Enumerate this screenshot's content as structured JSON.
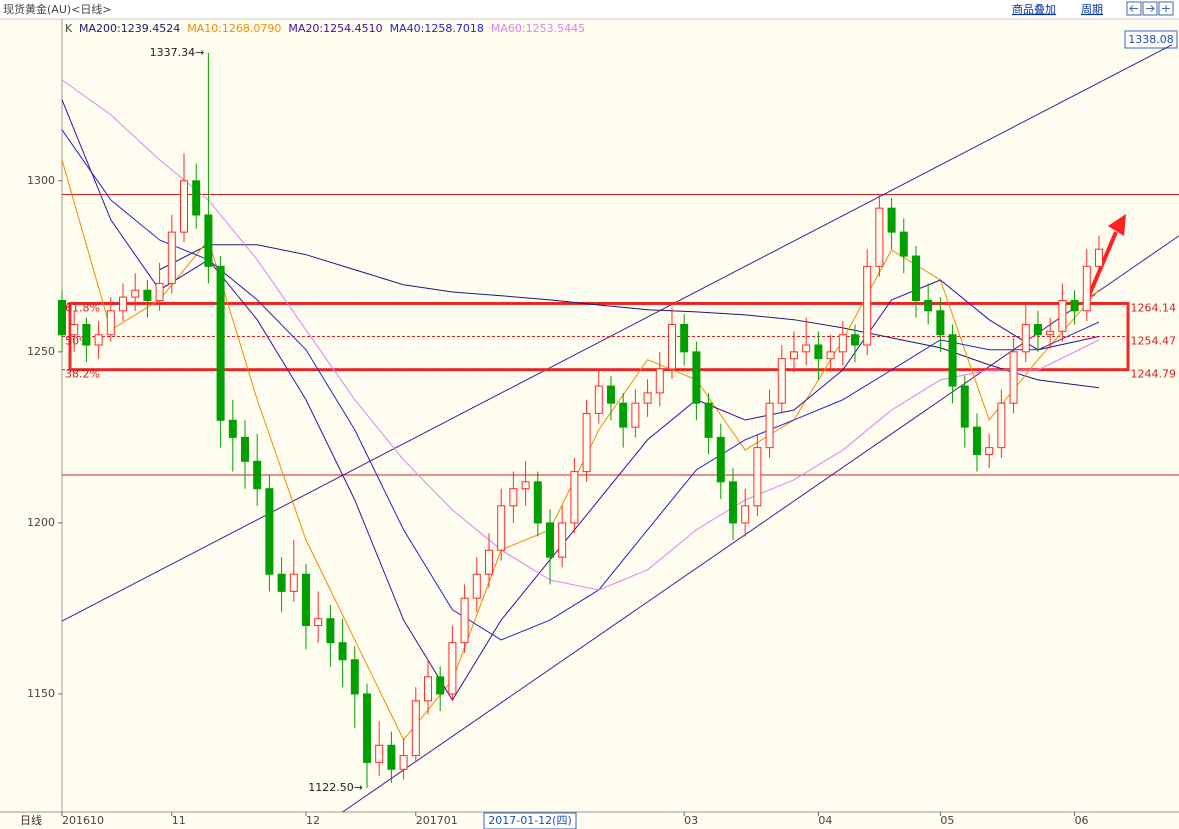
{
  "chart_data": {
    "type": "candlestick",
    "title": "现货黄金(AU)<日线>",
    "indicator_label": "K",
    "period_label": "日线",
    "toolbar": [
      "商品叠加",
      "周期"
    ],
    "cursor_label": "2017-01-12(四)",
    "price_tag": 1338.08,
    "categories": [
      "201610",
      null,
      null,
      null,
      null,
      null,
      null,
      null,
      null,
      "11",
      null,
      null,
      null,
      null,
      null,
      null,
      null,
      null,
      null,
      null,
      "12",
      null,
      null,
      null,
      null,
      null,
      null,
      null,
      null,
      "201701",
      null,
      null,
      null,
      null,
      null,
      null,
      null,
      null,
      null,
      null,
      null,
      null,
      null,
      null,
      null,
      null,
      null,
      null,
      null,
      null,
      null,
      "03",
      null,
      null,
      null,
      null,
      null,
      null,
      null,
      null,
      null,
      null,
      "04",
      null,
      null,
      null,
      null,
      null,
      null,
      null,
      null,
      null,
      "05",
      null,
      null,
      null,
      null,
      null,
      null,
      null,
      null,
      null,
      null,
      "06",
      null,
      null
    ],
    "ohlc": [
      [
        1265,
        1268,
        1250,
        1255
      ],
      [
        1255,
        1262,
        1250,
        1258
      ],
      [
        1258,
        1260,
        1247,
        1252
      ],
      [
        1252,
        1259,
        1248,
        1255
      ],
      [
        1255,
        1266,
        1253,
        1262
      ],
      [
        1262,
        1270,
        1259,
        1266
      ],
      [
        1266,
        1273,
        1262,
        1268
      ],
      [
        1268,
        1271,
        1260,
        1265
      ],
      [
        1265,
        1276,
        1262,
        1270
      ],
      [
        1270,
        1290,
        1267,
        1285
      ],
      [
        1285,
        1308,
        1282,
        1300
      ],
      [
        1300,
        1305,
        1286,
        1290
      ],
      [
        1290,
        1337.34,
        1270,
        1275
      ],
      [
        1275,
        1278,
        1222,
        1230
      ],
      [
        1230,
        1236,
        1215,
        1225
      ],
      [
        1225,
        1230,
        1210,
        1218
      ],
      [
        1218,
        1226,
        1205,
        1210
      ],
      [
        1210,
        1214,
        1180,
        1185
      ],
      [
        1185,
        1190,
        1174,
        1180
      ],
      [
        1180,
        1195,
        1177,
        1185
      ],
      [
        1185,
        1188,
        1163,
        1170
      ],
      [
        1170,
        1180,
        1165,
        1172
      ],
      [
        1172,
        1176,
        1158,
        1165
      ],
      [
        1165,
        1172,
        1152,
        1160
      ],
      [
        1160,
        1164,
        1140,
        1150
      ],
      [
        1150,
        1153,
        1122.5,
        1130
      ],
      [
        1130,
        1142,
        1126,
        1135
      ],
      [
        1135,
        1139,
        1124,
        1128
      ],
      [
        1128,
        1137,
        1125,
        1132
      ],
      [
        1132,
        1152,
        1130,
        1148
      ],
      [
        1148,
        1160,
        1144,
        1155
      ],
      [
        1155,
        1158,
        1145,
        1150
      ],
      [
        1150,
        1170,
        1148,
        1165
      ],
      [
        1165,
        1182,
        1162,
        1178
      ],
      [
        1178,
        1190,
        1174,
        1185
      ],
      [
        1185,
        1197,
        1181,
        1192
      ],
      [
        1192,
        1210,
        1189,
        1205
      ],
      [
        1205,
        1215,
        1200,
        1210
      ],
      [
        1210,
        1218,
        1205,
        1212
      ],
      [
        1212,
        1215,
        1196,
        1200
      ],
      [
        1200,
        1204,
        1182,
        1190
      ],
      [
        1190,
        1205,
        1187,
        1200
      ],
      [
        1200,
        1219,
        1197,
        1215
      ],
      [
        1215,
        1236,
        1212,
        1232
      ],
      [
        1232,
        1245,
        1229,
        1240
      ],
      [
        1240,
        1243,
        1230,
        1235
      ],
      [
        1235,
        1238,
        1222,
        1228
      ],
      [
        1228,
        1239,
        1225,
        1235
      ],
      [
        1235,
        1242,
        1231,
        1238
      ],
      [
        1238,
        1250,
        1234,
        1245
      ],
      [
        1245,
        1263,
        1242,
        1258
      ],
      [
        1258,
        1261,
        1246,
        1250
      ],
      [
        1250,
        1253,
        1230,
        1235
      ],
      [
        1235,
        1238,
        1220,
        1225
      ],
      [
        1225,
        1229,
        1207,
        1212
      ],
      [
        1212,
        1216,
        1195,
        1200
      ],
      [
        1200,
        1210,
        1196,
        1205
      ],
      [
        1205,
        1226,
        1202,
        1222
      ],
      [
        1222,
        1239,
        1219,
        1235
      ],
      [
        1235,
        1252,
        1232,
        1248
      ],
      [
        1248,
        1256,
        1244,
        1250
      ],
      [
        1250,
        1260,
        1246,
        1252
      ],
      [
        1252,
        1256,
        1242,
        1248
      ],
      [
        1248,
        1255,
        1244,
        1250
      ],
      [
        1250,
        1259,
        1246,
        1255
      ],
      [
        1255,
        1258,
        1247,
        1252
      ],
      [
        1252,
        1280,
        1249,
        1275
      ],
      [
        1275,
        1296,
        1272,
        1292
      ],
      [
        1292,
        1295,
        1280,
        1285
      ],
      [
        1285,
        1289,
        1273,
        1278
      ],
      [
        1278,
        1281,
        1260,
        1265
      ],
      [
        1265,
        1270,
        1258,
        1262
      ],
      [
        1262,
        1266,
        1250,
        1255
      ],
      [
        1255,
        1258,
        1235,
        1240
      ],
      [
        1240,
        1243,
        1222,
        1228
      ],
      [
        1228,
        1232,
        1215,
        1220
      ],
      [
        1220,
        1226,
        1216,
        1222
      ],
      [
        1222,
        1239,
        1219,
        1235
      ],
      [
        1235,
        1254,
        1232,
        1250
      ],
      [
        1250,
        1264,
        1247,
        1258
      ],
      [
        1258,
        1262,
        1250,
        1255
      ],
      [
        1255,
        1260,
        1251,
        1256
      ],
      [
        1256,
        1270,
        1253,
        1265
      ],
      [
        1265,
        1268,
        1258,
        1262
      ],
      [
        1262,
        1280,
        1259,
        1275
      ],
      [
        1275,
        1284,
        1272,
        1280
      ]
    ],
    "up_color": "#ff2a2a",
    "down_color": "#00a000",
    "xlim": [
      0,
      91.56
    ],
    "ylim": [
      1115.5,
      1347
    ],
    "yticks": [
      1150,
      1200,
      1250,
      1300
    ],
    "series": [
      {
        "name": "MA200:1239.4524",
        "color": "#1a1a6e",
        "x": [
          8,
          12,
          16,
          20,
          24,
          28,
          32,
          36,
          40,
          44,
          48,
          52,
          56,
          60,
          64,
          68,
          72,
          76,
          80,
          85
        ],
        "values": [
          1274,
          1281.3,
          1281.3,
          1278.4,
          1274,
          1269.6,
          1267.5,
          1266.4,
          1265.2,
          1263.7,
          1262.3,
          1261.7,
          1260.8,
          1259.4,
          1257,
          1254.1,
          1251.2,
          1246.2,
          1241.8,
          1239.5
        ]
      },
      {
        "name": "MA10:1268.0790",
        "color": "#f08c00",
        "x": [
          0,
          4,
          8,
          12,
          16,
          20,
          24,
          28,
          32,
          36,
          40,
          44,
          48,
          52,
          56,
          60,
          64,
          68,
          72,
          76,
          80,
          85
        ],
        "values": [
          1306.1,
          1256.4,
          1265.2,
          1282.7,
          1236,
          1195,
          1165.8,
          1136.6,
          1154.1,
          1192.1,
          1198,
          1227.2,
          1247.7,
          1241.8,
          1221.3,
          1230.1,
          1253.5,
          1279.8,
          1271,
          1230.1,
          1247.7,
          1268.1
        ]
      },
      {
        "name": "MA20:1254.4510",
        "color": "#3b0f9e",
        "x": [
          0,
          4,
          8,
          12,
          16,
          20,
          24,
          28,
          32,
          36,
          40,
          44,
          48,
          52,
          56,
          60,
          64,
          68,
          72,
          76,
          80,
          85
        ],
        "values": [
          1323.7,
          1288.6,
          1268.1,
          1276.9,
          1259.4,
          1236,
          1206.7,
          1171.6,
          1148.2,
          1171.6,
          1189.2,
          1206.7,
          1224.3,
          1236,
          1230.1,
          1233,
          1244.7,
          1265.2,
          1271,
          1259.4,
          1250.6,
          1254.5
        ]
      },
      {
        "name": "MA40:1258.7018",
        "color": "#2424c8",
        "x": [
          0,
          4,
          8,
          12,
          16,
          20,
          24,
          28,
          32,
          36,
          40,
          44,
          48,
          52,
          56,
          60,
          64,
          68,
          72,
          76,
          80,
          85
        ],
        "values": [
          1314.9,
          1294.4,
          1282.7,
          1276.9,
          1265.2,
          1250.6,
          1227.2,
          1198,
          1174.6,
          1165.8,
          1171.6,
          1180.4,
          1198,
          1215.5,
          1224.3,
          1230.1,
          1236,
          1244.7,
          1253.5,
          1250.6,
          1250.6,
          1258.7
        ]
      },
      {
        "name": "MA60:1253.5445",
        "color": "#e080f0",
        "x": [
          0,
          4,
          8,
          12,
          16,
          20,
          24,
          28,
          32,
          36,
          40,
          44,
          48,
          52,
          56,
          60,
          64,
          68,
          72,
          76,
          80,
          85
        ],
        "values": [
          1329.5,
          1319.3,
          1306.1,
          1294.4,
          1276.9,
          1256.4,
          1236,
          1218.4,
          1203.8,
          1192.1,
          1183.3,
          1180.4,
          1186.3,
          1198,
          1206.7,
          1212.6,
          1221.3,
          1233,
          1241.8,
          1244.7,
          1244.7,
          1253.5
        ]
      }
    ],
    "annotations": [
      {
        "text": "1337.34→",
        "index": 12,
        "value": 1337.34
      },
      {
        "text": "1122.50→",
        "index": 25,
        "value": 1122.5
      }
    ],
    "fib_levels": [
      {
        "label": "61.8%",
        "value": 1264.14
      },
      {
        "label": "50%",
        "value": 1254.47
      },
      {
        "label": "38.2%",
        "value": 1244.79
      }
    ],
    "hlines": [
      1296,
      1214
    ],
    "trend_lines": [
      {
        "x": [
          0,
          91
        ],
        "values": [
          1171.3,
          1339.8
        ]
      },
      {
        "x": [
          23,
          92
        ],
        "values": [
          1115.5,
          1285
        ]
      }
    ]
  }
}
